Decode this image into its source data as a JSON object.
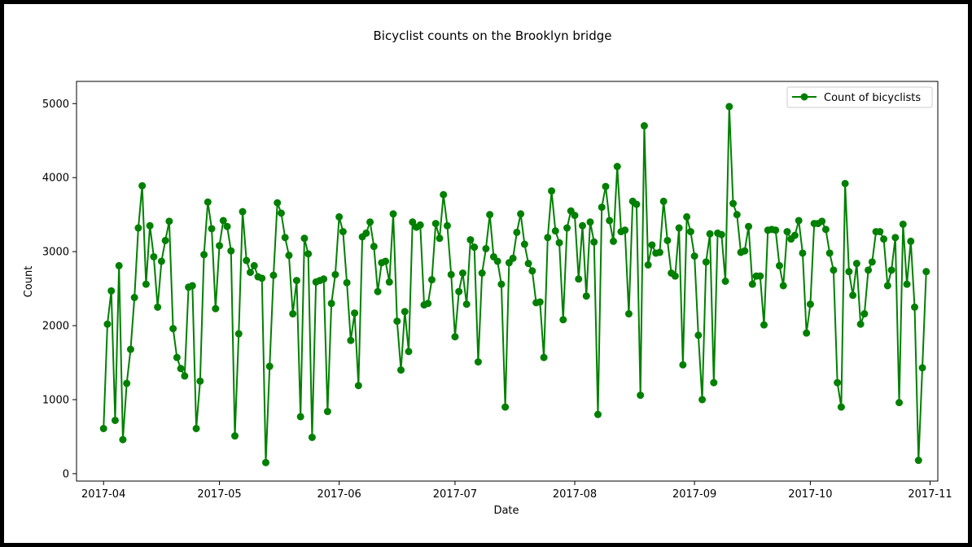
{
  "chart_data": {
    "type": "line",
    "title": "Bicyclist counts on the Brooklyn bridge",
    "xlabel": "Date",
    "ylabel": "Count",
    "xlim": [
      "2017-03-25",
      "2017-11-03"
    ],
    "ylim": [
      -100,
      5300
    ],
    "x_ticks": [
      "2017-04-01",
      "2017-05-01",
      "2017-06-01",
      "2017-07-01",
      "2017-08-01",
      "2017-09-01",
      "2017-10-01",
      "2017-11-01"
    ],
    "x_tick_labels": [
      "2017-04",
      "2017-05",
      "2017-06",
      "2017-07",
      "2017-08",
      "2017-09",
      "2017-10",
      "2017-11"
    ],
    "y_ticks": [
      0,
      1000,
      2000,
      3000,
      4000,
      5000
    ],
    "y_tick_labels": [
      "0",
      "1000",
      "2000",
      "3000",
      "4000",
      "5000"
    ],
    "grid": false,
    "legend_position": "upper right",
    "color": "#008000",
    "marker": "circle",
    "series": [
      {
        "name": "Count of bicyclists",
        "start_date": "2017-04-01",
        "values": [
          610,
          2020,
          2470,
          720,
          2810,
          460,
          1220,
          1680,
          2380,
          3320,
          3890,
          2560,
          3350,
          2930,
          2250,
          2870,
          3150,
          3410,
          1960,
          1570,
          1420,
          1320,
          2520,
          2540,
          610,
          1250,
          2960,
          3670,
          3310,
          2230,
          3080,
          3420,
          3340,
          3010,
          510,
          1890,
          3540,
          2880,
          2720,
          2810,
          2660,
          2640,
          150,
          1450,
          2680,
          3660,
          3520,
          3190,
          2950,
          2160,
          2610,
          770,
          3180,
          2970,
          490,
          2590,
          2610,
          2630,
          840,
          2300,
          2690,
          3470,
          3270,
          2580,
          1800,
          2170,
          1190,
          3200,
          3250,
          3400,
          3070,
          2460,
          2850,
          2870,
          2590,
          3510,
          2060,
          1400,
          2190,
          1650,
          3400,
          3330,
          3360,
          2280,
          2300,
          2620,
          3380,
          3180,
          3770,
          3350,
          2690,
          1850,
          2460,
          2710,
          2290,
          3160,
          3060,
          1510,
          2710,
          3040,
          3500,
          2930,
          2870,
          2560,
          900,
          2850,
          2910,
          3260,
          3510,
          3100,
          2840,
          2740,
          2310,
          2320,
          1570,
          3190,
          3820,
          3280,
          3120,
          2080,
          3320,
          3550,
          3490,
          2630,
          3350,
          2400,
          3400,
          3130,
          800,
          3600,
          3880,
          3420,
          3140,
          4150,
          3270,
          3290,
          2160,
          3680,
          3640,
          1060,
          4700,
          2820,
          3090,
          2980,
          2990,
          3680,
          3150,
          2710,
          2670,
          3320,
          1470,
          3470,
          3270,
          2940,
          1870,
          1000,
          2860,
          3240,
          1230,
          3250,
          3230,
          2600,
          4960,
          3650,
          3500,
          2990,
          3010,
          3340,
          2560,
          2670,
          2670,
          2010,
          3290,
          3300,
          3290,
          2810,
          2540,
          3270,
          3170,
          3220,
          3420,
          2980,
          1900,
          2290,
          3380,
          3380,
          3410,
          3300,
          2980,
          2750,
          1230,
          900,
          3920,
          2730,
          2410,
          2840,
          2020,
          2160,
          2750,
          2860,
          3270,
          3270,
          3170,
          2540,
          2750,
          3190,
          960,
          3370,
          2560,
          3140,
          2250,
          180,
          1430,
          2730
        ]
      }
    ]
  }
}
